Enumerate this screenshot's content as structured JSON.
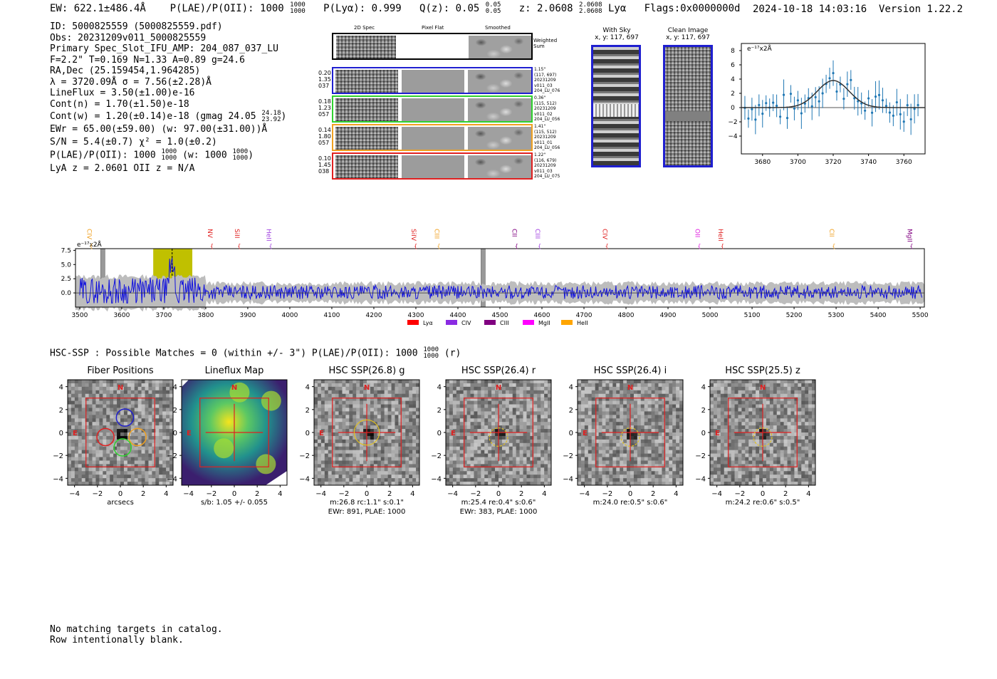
{
  "header": {
    "ew": "EW: 622.1±486.4Å",
    "plae_label": "P(LAE)/P(OII): 1000",
    "plae_sup": "1000",
    "plae_sub": "1000",
    "plya": "P(Lyα): 0.999",
    "qz_label": "Q(z): 0.05",
    "qz_sup": "0.05",
    "qz_sub": "0.05",
    "z_label": "z: 2.0608",
    "z_sup": "2.0608",
    "z_sub": "2.0608",
    "z_line": "Lyα",
    "flags": "Flags:0x0000000d",
    "timestamp": "2024-10-18 14:03:16",
    "version": "Version 1.22.2"
  },
  "info": {
    "id": "ID: 5000825559 (5000825559.pdf)",
    "obs": "Obs: 20231209v011_5000825559",
    "primary": "Primary Spec_Slot_IFU_AMP: 204_087_037_LU",
    "fit": "F=2.2\"  T=0.169  N=1.33  A=0.89  g=24.6",
    "radec": "RA,Dec (25.159454,1.964285)",
    "lambda": "λ = 3720.09Å   σ = 7.56(±2.28)Å",
    "lineflux": "LineFlux = 3.50(±1.00)e-16",
    "contn": "Cont(n) = 1.70(±1.50)e-18",
    "contw": "Cont(w) = 1.20(±0.14)e-18 (gmag 24.05",
    "contw_sup": "24.18",
    "contw_sub": "23.92",
    "contw_end": ")",
    "ewr": "EWr = 65.00(±59.00) (w: 97.00(±31.00))Å",
    "sn": "S/N = 5.4(±0.7)  χ² = 1.0(±0.2)",
    "plae": "P(LAE)/P(OII): 1000",
    "plae_sup": "1000",
    "plae_sub": "1000",
    "plae_w": "(w: 1000",
    "plae_w_sup": "1000",
    "plae_w_sub": "1000",
    "plae_w_end": ")",
    "lyaz": "LyA z = 2.0601   OII z = N/A"
  },
  "cutouts": {
    "col_2d": "2D Spec",
    "col_flat": "Pixel Flat",
    "col_smooth": "Smoothed",
    "weighted": "Weighted Sum",
    "rows": [
      {
        "l1": "0.20",
        "l2": "1.35",
        "l3": "037",
        "r1": "1.15\"",
        "r2": "(117, 697)",
        "r3": "20231209",
        "r4": "v011_03",
        "r5": "204_LU_076",
        "color": "#1f1fd0"
      },
      {
        "l1": "0.18",
        "l2": "1.23",
        "l3": "057",
        "r1": "0.36\"",
        "r2": "(115, 512)",
        "r3": "20231209",
        "r4": "v011_02",
        "r5": "204_LU_056",
        "color": "#2fd12f"
      },
      {
        "l1": "0.14",
        "l2": "1.80",
        "l3": "057",
        "r1": "1.41\"",
        "r2": "(115, 512)",
        "r3": "20231209",
        "r4": "v011_01",
        "r5": "204_LU_056",
        "color": "#f0a020"
      },
      {
        "l1": "0.10",
        "l2": "1.45",
        "l3": "038",
        "r1": "1.22\"",
        "r2": "(116, 679)",
        "r3": "20231209",
        "r4": "v011_03",
        "r5": "204_LU_075",
        "color": "#e02020"
      }
    ],
    "with_sky": "With Sky",
    "with_sky_xy": "x, y: 117, 697",
    "clean": "Clean Image",
    "clean_xy": "x, y: 117, 697"
  },
  "zoom_plot": {
    "unit": "e⁻¹⁷x2Å",
    "xticks": [
      "3680",
      "3700",
      "3720",
      "3740",
      "3760"
    ],
    "yticks": [
      "8",
      "6",
      "4",
      "2",
      "0",
      "−2",
      "−4"
    ]
  },
  "spectrum": {
    "unit": "e⁻¹⁷x2Å",
    "yticks": [
      "7.5",
      "5.0",
      "2.5",
      "0.0"
    ],
    "xticks": [
      "3500",
      "3600",
      "3700",
      "3800",
      "3900",
      "4000",
      "4100",
      "4200",
      "4300",
      "4400",
      "4500",
      "4600",
      "4700",
      "4800",
      "4900",
      "5000",
      "5100",
      "5200",
      "5300",
      "5400",
      "5500"
    ],
    "lines": [
      {
        "label": "CIV",
        "w": 3518,
        "color": "#f0a020"
      },
      {
        "label": "NV",
        "w": 3805,
        "color": "#e02020"
      },
      {
        "label": "SiII",
        "w": 3870,
        "color": "#e02020"
      },
      {
        "label": "HeII",
        "w": 3945,
        "color": "#a040e0"
      },
      {
        "label": "SiIV",
        "w": 4290,
        "color": "#e02020"
      },
      {
        "label": "CIII",
        "w": 4345,
        "color": "#f0a020"
      },
      {
        "label": "CII",
        "w": 4530,
        "color": "#800080"
      },
      {
        "label": "CIII",
        "w": 4585,
        "color": "#a040e0"
      },
      {
        "label": "CIV",
        "w": 4745,
        "color": "#e02020"
      },
      {
        "label": "OII",
        "w": 4965,
        "color": "#e020e0"
      },
      {
        "label": "HeII",
        "w": 5020,
        "color": "#e02020"
      },
      {
        "label": "CII",
        "w": 5285,
        "color": "#f0a020"
      },
      {
        "label": "MgII",
        "w": 5470,
        "color": "#800080"
      }
    ],
    "legend": [
      {
        "label": "Lyα",
        "color": "#ff0000"
      },
      {
        "label": "CIV",
        "color": "#8a2be2"
      },
      {
        "label": "CIII",
        "color": "#800080"
      },
      {
        "label": "MgII",
        "color": "#ff00ff"
      },
      {
        "label": "HeII",
        "color": "#ffa500"
      }
    ]
  },
  "hsc": {
    "heading": "HSC-SSP : Possible Matches = 0 (within +/- 3\")  P(LAE)/P(OII): 1000",
    "heading_sup": "1000",
    "heading_sub": "1000",
    "heading_end": "(r)",
    "panels": [
      {
        "title": "Fiber Positions",
        "cap1": "arcsecs",
        "cap2": ""
      },
      {
        "title": "Lineflux Map",
        "cap1": "s/b: 1.05 +/- 0.055",
        "cap2": ""
      },
      {
        "title": "HSC SSP(26.8) g",
        "cap1": "m:26.8 rc:1.1\"  s:0.1\"",
        "cap2": "EWr: 891, PLAE: 1000"
      },
      {
        "title": "HSC SSP(26.4) r",
        "cap1": "m:25.4  re:0.4\"  s:0.6\"",
        "cap2": "EWr: 383, PLAE: 1000"
      },
      {
        "title": "HSC SSP(26.4) i",
        "cap1": "m:24.0  re:0.5\"  s:0.6\"",
        "cap2": ""
      },
      {
        "title": "HSC SSP(25.5) z",
        "cap1": "m:24.2  re:0.6\"  s:0.5\"",
        "cap2": ""
      }
    ],
    "north": "N",
    "east": "E",
    "ticks": [
      "4",
      "2",
      "0",
      "−2",
      "−4"
    ],
    "xticks": [
      "−4",
      "−2",
      "0",
      "2",
      "4"
    ]
  },
  "footer": {
    "line1": "No matching targets in catalog.",
    "line2": "Row intentionally blank."
  }
}
